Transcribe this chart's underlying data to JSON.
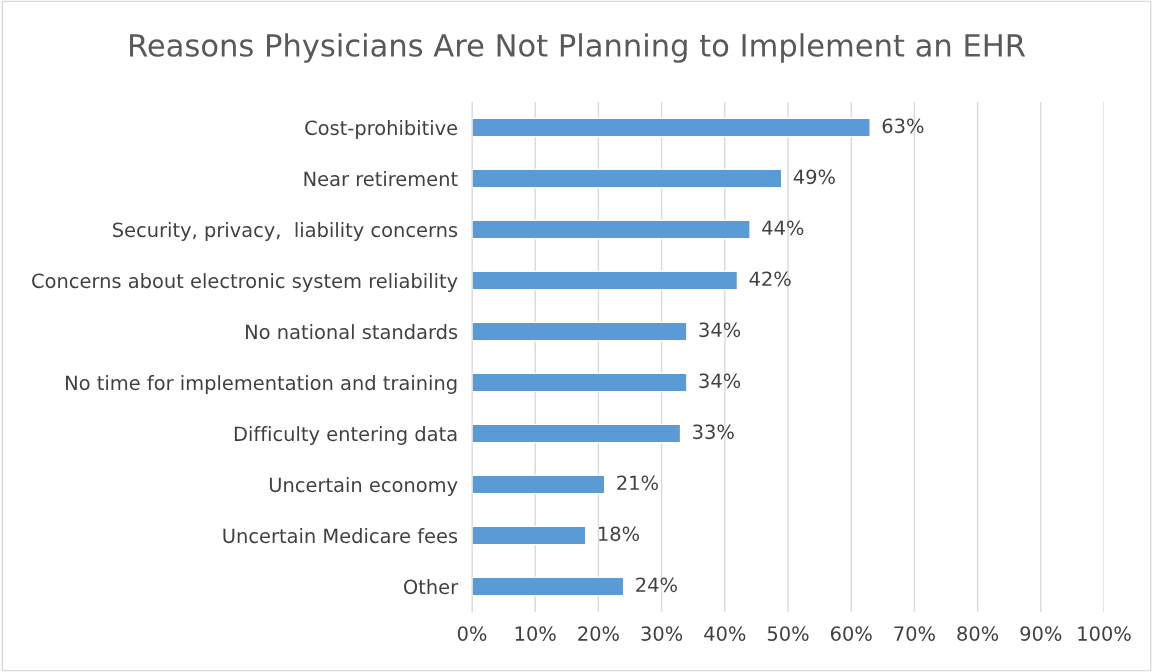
{
  "chart_data": {
    "type": "bar",
    "orientation": "horizontal",
    "title": "Reasons Physicians Are Not Planning to Implement an EHR",
    "categories": [
      "Cost-prohibitive",
      "Near retirement",
      "Security, privacy,  liability concerns",
      "Concerns about electronic system reliability",
      "No national standards",
      "No time for implementation and training",
      "Difficulty entering data",
      "Uncertain economy",
      "Uncertain Medicare fees",
      "Other"
    ],
    "values": [
      63,
      49,
      44,
      42,
      34,
      34,
      33,
      21,
      18,
      24
    ],
    "value_labels": [
      "63%",
      "49%",
      "44%",
      "42%",
      "34%",
      "34%",
      "33%",
      "21%",
      "18%",
      "24%"
    ],
    "color": "#5b9bd5",
    "xlim": [
      0,
      100
    ],
    "xticks": [
      {
        "value": 0,
        "label": "0%"
      },
      {
        "value": 10,
        "label": "10%"
      },
      {
        "value": 20,
        "label": "20%"
      },
      {
        "value": 30,
        "label": "30%"
      },
      {
        "value": 40,
        "label": "40%"
      },
      {
        "value": 50,
        "label": "50%"
      },
      {
        "value": 60,
        "label": "60%"
      },
      {
        "value": 70,
        "label": "70%"
      },
      {
        "value": 80,
        "label": "80%"
      },
      {
        "value": 90,
        "label": "90%"
      },
      {
        "value": 100,
        "label": "100%"
      }
    ],
    "grid": "x"
  }
}
